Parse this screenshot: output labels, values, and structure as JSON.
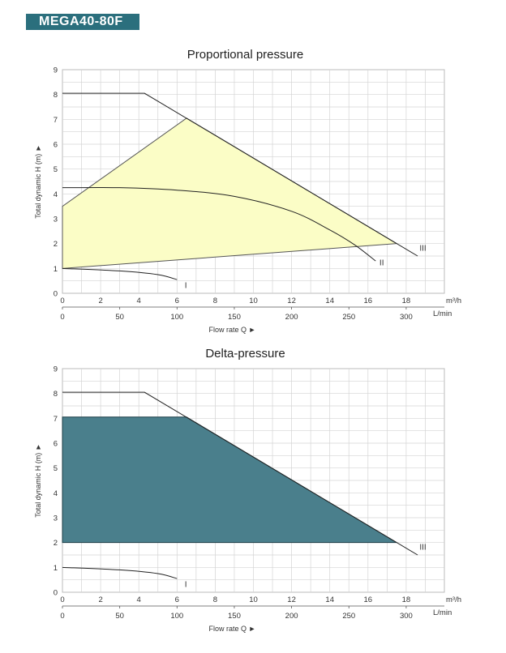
{
  "model": "MEGA40-80F",
  "x_units": "m³/h",
  "x2_units": "L/min",
  "colors": {
    "badge": "#2b6f7d",
    "prop_fill": "#fbfdc6",
    "delta_fill": "#4a7f8c"
  },
  "chart_data": [
    {
      "type": "line",
      "title": "Proportional pressure",
      "xlabel": "Flow rate Q ►",
      "ylabel": "Total dynamic H (m) ►",
      "xlim": [
        0,
        20
      ],
      "ylim": [
        0,
        9
      ],
      "x_ticks": [
        0,
        2,
        4,
        6,
        8,
        10,
        12,
        14,
        16,
        18
      ],
      "y_ticks": [
        0,
        1,
        2,
        3,
        4,
        5,
        6,
        7,
        8,
        9
      ],
      "x2_ticks": [
        0,
        50,
        100,
        150,
        200,
        250,
        300
      ],
      "grid": true,
      "curves": [
        {
          "name": "I",
          "points": [
            [
              0,
              1.0
            ],
            [
              3,
              0.9
            ],
            [
              5,
              0.75
            ],
            [
              6,
              0.55
            ]
          ]
        },
        {
          "name": "II",
          "points": [
            [
              0,
              4.25
            ],
            [
              3,
              4.25
            ],
            [
              6,
              4.15
            ],
            [
              9,
              3.9
            ],
            [
              12,
              3.3
            ],
            [
              14,
              2.55
            ],
            [
              15.3,
              1.95
            ],
            [
              16.4,
              1.3
            ]
          ]
        },
        {
          "name": "III",
          "points": [
            [
              0,
              8.05
            ],
            [
              4.3,
              8.05
            ],
            [
              18.6,
              1.5
            ]
          ]
        }
      ],
      "region": {
        "points": [
          [
            0,
            3.5
          ],
          [
            6.5,
            7.05
          ],
          [
            17.5,
            2.0
          ],
          [
            0,
            1.0
          ]
        ]
      }
    },
    {
      "type": "line",
      "title": "Delta-pressure",
      "xlabel": "Flow rate Q ►",
      "ylabel": "Total dynamic H (m) ►",
      "xlim": [
        0,
        20
      ],
      "ylim": [
        0,
        9
      ],
      "x_ticks": [
        0,
        2,
        4,
        6,
        8,
        10,
        12,
        14,
        16,
        18
      ],
      "y_ticks": [
        0,
        1,
        2,
        3,
        4,
        5,
        6,
        7,
        8,
        9
      ],
      "x2_ticks": [
        0,
        50,
        100,
        150,
        200,
        250,
        300
      ],
      "grid": true,
      "curves": [
        {
          "name": "I",
          "points": [
            [
              0,
              1.0
            ],
            [
              3,
              0.9
            ],
            [
              5,
              0.75
            ],
            [
              6,
              0.55
            ]
          ]
        },
        {
          "name": "III",
          "points": [
            [
              0,
              8.05
            ],
            [
              4.3,
              8.05
            ],
            [
              18.6,
              1.5
            ]
          ]
        }
      ],
      "region": {
        "points": [
          [
            0,
            7.05
          ],
          [
            6.5,
            7.05
          ],
          [
            17.5,
            2.0
          ],
          [
            0,
            2.0
          ]
        ]
      }
    }
  ]
}
